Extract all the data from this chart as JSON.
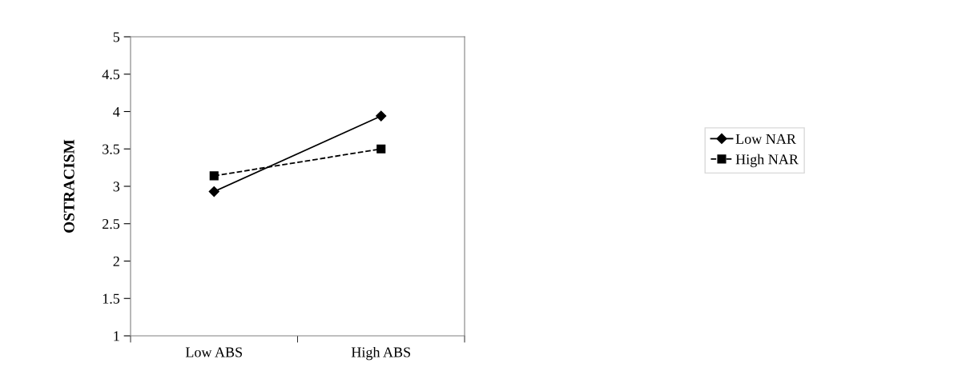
{
  "chart_data": {
    "type": "line",
    "ylabel": "OSTRACISM",
    "categories": [
      "Low ABS",
      "High ABS"
    ],
    "series": [
      {
        "name": "Low NAR",
        "color": "#000000",
        "values": [
          2.93,
          3.94
        ],
        "marker": "diamond",
        "line_style": "solid"
      },
      {
        "name": "High NAR",
        "color": "#000000",
        "values": [
          3.14,
          3.5
        ],
        "marker": "square",
        "line_style": "dashed"
      }
    ],
    "ylim": [
      1,
      5
    ],
    "yticks": [
      1,
      1.5,
      2,
      2.5,
      3,
      3.5,
      4,
      4.5,
      5
    ],
    "grid": false,
    "legend": "right"
  }
}
